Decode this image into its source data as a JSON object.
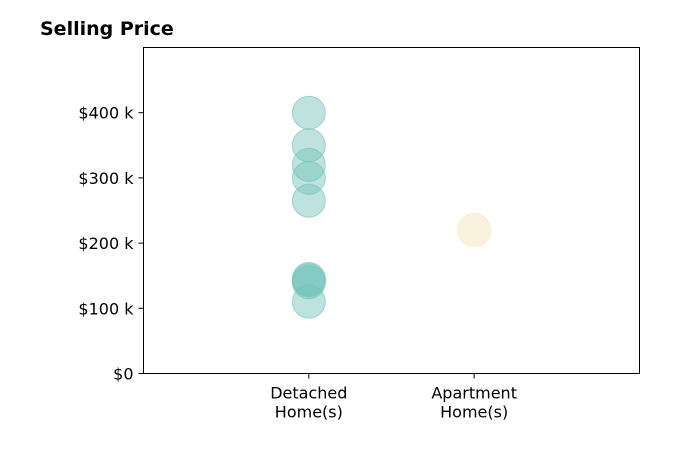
{
  "chart_data": {
    "type": "scatter",
    "title": "Selling Price",
    "xlabel": "",
    "ylabel": "",
    "categories": [
      [
        "Detached",
        "Home(s)"
      ],
      [
        "Apartment",
        "Home(s)"
      ]
    ],
    "xlim": [
      -1,
      2
    ],
    "ylim": [
      0,
      500
    ],
    "yticks": [
      0,
      100,
      200,
      300,
      400
    ],
    "ytick_labels": [
      "$0",
      "$100 k",
      "$200 k",
      "$300 k",
      "$400 k"
    ],
    "grid": false,
    "series": [
      {
        "category": 0,
        "color": "#6fc2b8",
        "values": [
          400,
          350,
          320,
          300,
          265,
          145,
          143,
          140,
          110
        ]
      },
      {
        "category": 1,
        "color": "#f6e2b6",
        "values": [
          220
        ]
      }
    ]
  }
}
